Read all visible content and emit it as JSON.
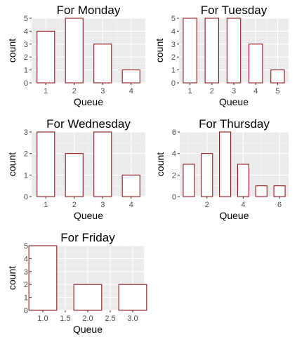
{
  "chart_data": [
    {
      "type": "bar",
      "title": "For Monday",
      "xlabel": "Queue",
      "ylabel": "count",
      "x": [
        1,
        2,
        3,
        4
      ],
      "values": [
        4,
        5,
        3,
        1
      ],
      "xlim": [
        0.5,
        4.5
      ],
      "ylim": [
        0,
        5
      ],
      "x_ticks": [
        1,
        2,
        3,
        4
      ],
      "x_tick_labels": [
        "1",
        "2",
        "3",
        "4"
      ],
      "y_ticks": [
        0,
        1,
        2,
        3,
        4,
        5
      ],
      "grid": true,
      "bar_fill": "#ffffff",
      "bar_stroke": "#8b1a1a",
      "panel_background": "#ebebeb"
    },
    {
      "type": "bar",
      "title": "For Tuesday",
      "xlabel": "Queue",
      "ylabel": "count",
      "x": [
        1,
        2,
        3,
        4,
        5
      ],
      "values": [
        5,
        5,
        5,
        3,
        1
      ],
      "xlim": [
        0.5,
        5.5
      ],
      "ylim": [
        0,
        5
      ],
      "x_ticks": [
        1,
        2,
        3,
        4,
        5
      ],
      "x_tick_labels": [
        "1",
        "2",
        "3",
        "4",
        "5"
      ],
      "y_ticks": [
        0,
        1,
        2,
        3,
        4,
        5
      ],
      "grid": true,
      "bar_fill": "#ffffff",
      "bar_stroke": "#8b1a1a",
      "panel_background": "#ebebeb"
    },
    {
      "type": "bar",
      "title": "For Wednesday",
      "xlabel": "Queue",
      "ylabel": "count",
      "x": [
        1,
        2,
        3,
        4
      ],
      "values": [
        3,
        2,
        3,
        1
      ],
      "xlim": [
        0.5,
        4.5
      ],
      "ylim": [
        0,
        3
      ],
      "x_ticks": [
        1,
        2,
        3,
        4
      ],
      "x_tick_labels": [
        "1",
        "2",
        "3",
        "4"
      ],
      "y_ticks": [
        0,
        1,
        2,
        3
      ],
      "grid": true,
      "bar_fill": "#ffffff",
      "bar_stroke": "#8b1a1a",
      "panel_background": "#ebebeb"
    },
    {
      "type": "bar",
      "title": "For Thursday",
      "xlabel": "Queue",
      "ylabel": "count",
      "x": [
        1,
        2,
        3,
        4,
        5,
        6
      ],
      "values": [
        3,
        4,
        6,
        3,
        1,
        1
      ],
      "xlim": [
        0.5,
        6.5
      ],
      "ylim": [
        0,
        6
      ],
      "x_ticks": [
        2,
        4,
        6
      ],
      "x_tick_labels": [
        "2",
        "4",
        "6"
      ],
      "y_ticks": [
        0,
        2,
        4,
        6
      ],
      "grid": true,
      "bar_fill": "#ffffff",
      "bar_stroke": "#8b1a1a",
      "panel_background": "#ebebeb"
    },
    {
      "type": "bar",
      "title": "For Friday",
      "xlabel": "Queue",
      "ylabel": "count",
      "x": [
        1,
        2,
        3
      ],
      "values": [
        5,
        2,
        2
      ],
      "xlim": [
        0.75,
        3.25
      ],
      "ylim": [
        0,
        5
      ],
      "x_ticks": [
        1.0,
        1.5,
        2.0,
        2.5,
        3.0
      ],
      "x_tick_labels": [
        "1.0",
        "1.5",
        "2.0",
        "2.5",
        "3.0"
      ],
      "y_ticks": [
        0,
        1,
        2,
        3,
        4,
        5
      ],
      "grid": true,
      "bar_fill": "#ffffff",
      "bar_stroke": "#8b1a1a",
      "panel_background": "#ebebeb"
    }
  ]
}
